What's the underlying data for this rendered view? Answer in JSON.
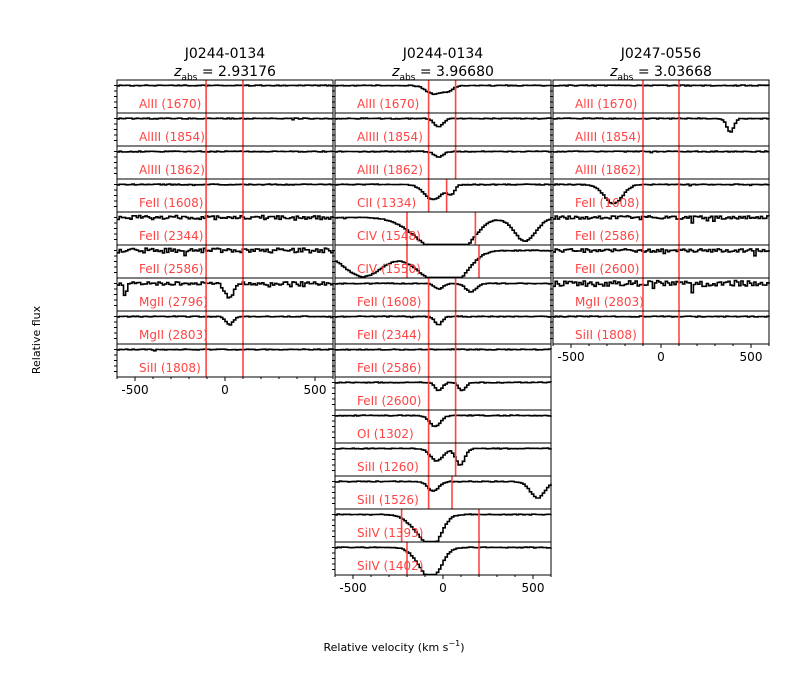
{
  "chart_data": {
    "type": "line",
    "xlabel": "Relative velocity (km s$^{-1}$)",
    "xlabel_text": "Relative velocity (km s",
    "xlabel_sup": "−1",
    "xlabel_close": ")",
    "ylabel": "Relative flux",
    "xlim": [
      -600,
      600
    ],
    "x_ticks": [
      -500,
      0,
      500
    ],
    "x_tick_labels": [
      "-500",
      "0",
      "500"
    ],
    "flux_ylim": [
      0,
      1.2
    ],
    "line_color": "#000000",
    "marker_color": "#ff4444",
    "panels": [
      {
        "name": "J0244-0134",
        "redshift": "2.93176",
        "markers": [
          -105,
          100
        ],
        "transitions": [
          {
            "ion": "AlII (1670)",
            "features": []
          },
          {
            "ion": "AlIII (1854)",
            "features": []
          },
          {
            "ion": "AlIII (1862)",
            "features": []
          },
          {
            "ion": "FeII (1608)",
            "features": []
          },
          {
            "ion": "FeII (2344)",
            "noise": 0.6,
            "features": []
          },
          {
            "ion": "FeII (2586)",
            "noise": 0.7,
            "features": []
          },
          {
            "ion": "MgII (2796)",
            "noise": 0.5,
            "features": [
              [
                -560,
                10,
                0.4
              ],
              [
                20,
                25,
                0.5
              ]
            ]
          },
          {
            "ion": "MgII (2803)",
            "features": [
              [
                20,
                20,
                0.3
              ]
            ]
          },
          {
            "ion": "SiII (1808)",
            "features": []
          }
        ]
      },
      {
        "name": "J0244-0134",
        "redshift": "3.96680",
        "markers": [
          -80,
          70
        ],
        "transitions": [
          {
            "ion": "AlII (1670)",
            "features": [
              [
                -60,
                40,
                0.3
              ],
              [
                20,
                30,
                0.2
              ]
            ]
          },
          {
            "ion": "AlIII (1854)",
            "features": [
              [
                -30,
                25,
                0.3
              ]
            ]
          },
          {
            "ion": "AlIII (1862)",
            "features": [
              [
                -30,
                25,
                0.2
              ]
            ]
          },
          {
            "ion": "CII (1334)",
            "markers": [
              -80,
              20
            ],
            "features": [
              [
                -60,
                50,
                0.55
              ],
              [
                40,
                20,
                0.3
              ]
            ]
          },
          {
            "ion": "CIV (1548)",
            "markers": [
              -200,
              180
            ],
            "features": [
              [
                -60,
                120,
                0.95
              ],
              [
                80,
                90,
                0.9
              ],
              [
                450,
                60,
                0.85
              ]
            ]
          },
          {
            "ion": "CIV (1550)",
            "markers": [
              -200,
              200
            ],
            "features": [
              [
                -450,
                110,
                0.95
              ],
              [
                -60,
                110,
                0.95
              ],
              [
                70,
                80,
                0.7
              ]
            ]
          },
          {
            "ion": "FeII (1608)",
            "features": [
              [
                -30,
                25,
                0.2
              ],
              [
                150,
                30,
                0.3
              ]
            ]
          },
          {
            "ion": "FeII (2344)",
            "features": [
              [
                -30,
                20,
                0.3
              ]
            ]
          },
          {
            "ion": "FeII (2586)",
            "features": []
          },
          {
            "ion": "FeII (2600)",
            "features": [
              [
                -30,
                20,
                0.3
              ],
              [
                100,
                20,
                0.3
              ]
            ]
          },
          {
            "ion": "OI (1302)",
            "features": [
              [
                -50,
                30,
                0.4
              ]
            ]
          },
          {
            "ion": "SiII (1260)",
            "features": [
              [
                -40,
                35,
                0.45
              ],
              [
                90,
                25,
                0.6
              ]
            ]
          },
          {
            "ion": "SiII (1526)",
            "markers": [
              -80,
              50
            ],
            "features": [
              [
                -60,
                30,
                0.35
              ],
              [
                520,
                40,
                0.6
              ]
            ]
          },
          {
            "ion": "SiIV (1393)",
            "markers": [
              -230,
              200
            ],
            "features": [
              [
                -60,
                50,
                0.95
              ],
              [
                -140,
                60,
                0.5
              ]
            ]
          },
          {
            "ion": "SiIV (1402)",
            "markers": [
              -200,
              200
            ],
            "features": [
              [
                -60,
                50,
                0.95
              ],
              [
                -130,
                50,
                0.4
              ]
            ]
          }
        ]
      },
      {
        "name": "J0247-0556",
        "redshift": "3.03668",
        "markers": [
          -100,
          100
        ],
        "transitions": [
          {
            "ion": "AlII (1670)",
            "features": []
          },
          {
            "ion": "AlIII (1854)",
            "features": [
              [
                380,
                20,
                0.5
              ]
            ]
          },
          {
            "ion": "AlIII (1862)",
            "features": []
          },
          {
            "ion": "FeII (1608)",
            "features": [
              [
                -270,
                50,
                0.7
              ]
            ]
          },
          {
            "ion": "FeII (2586)",
            "noise": 0.5,
            "features": []
          },
          {
            "ion": "FeII (2600)",
            "noise": 0.5,
            "features": []
          },
          {
            "ion": "MgII (2803)",
            "noise": 0.9,
            "features": []
          },
          {
            "ion": "SiII (1808)",
            "features": []
          }
        ]
      }
    ]
  }
}
